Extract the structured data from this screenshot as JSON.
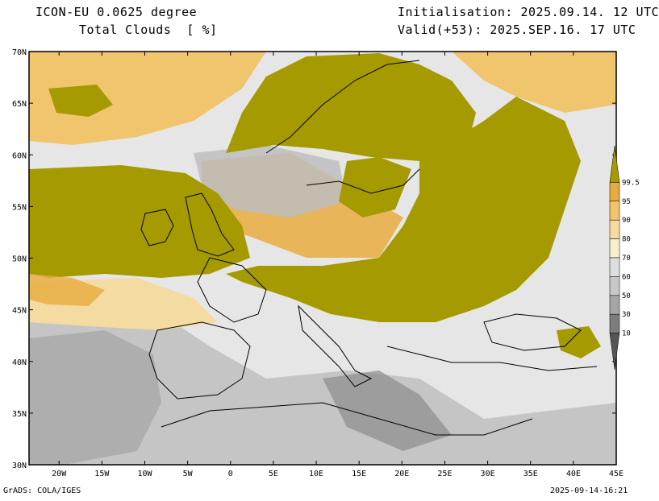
{
  "header": {
    "model": "ICON-EU 0.0625 degree",
    "variable": "Total Clouds  [ %]",
    "init": "Initialisation: 2025.09.14. 12 UTC",
    "valid": "Valid(+53): 2025.SEP.16. 17 UTC"
  },
  "axes": {
    "lon_labels": [
      "20W",
      "15W",
      "10W",
      "5W",
      "0",
      "5E",
      "10E",
      "15E",
      "20E",
      "25E",
      "30E",
      "35E",
      "40E",
      "45E"
    ],
    "lat_labels": [
      "70N",
      "65N",
      "60N",
      "55N",
      "50N",
      "45N",
      "40N",
      "35N",
      "30N"
    ],
    "lon_range": [
      -23.5,
      45
    ],
    "lat_range": [
      30,
      70
    ]
  },
  "colorbar": {
    "labels": [
      "99.5",
      "95",
      "90",
      "80",
      "70",
      "60",
      "50",
      "30",
      "10"
    ],
    "colors": [
      "#a59a00",
      "#e8ab3f",
      "#f1c46e",
      "#f4dba1",
      "#f7f0cc",
      "#dedede",
      "#c8c8c8",
      "#a5a5a5",
      "#7d7d7d",
      "#555555"
    ]
  },
  "palette": {
    "overcast": "#a59a00",
    "clear": "#e6e6e6",
    "coast": "#000000"
  },
  "footer": {
    "left": "GrADS: COLA/IGES",
    "right": "2025-09-14-16:21"
  }
}
